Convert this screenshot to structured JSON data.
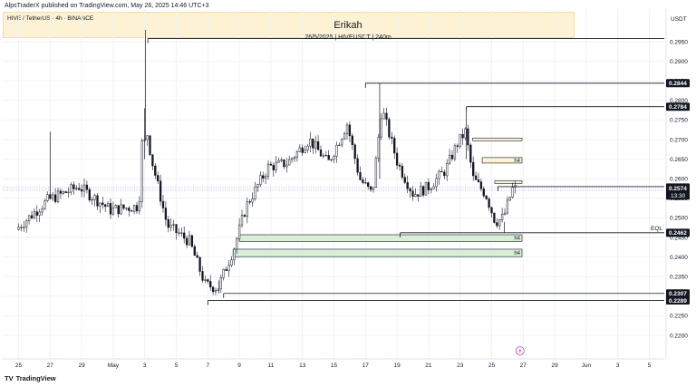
{
  "header": {
    "published": "AlpsTraderX published on TradingView.com, May 26, 2025 14:46 UTC+3",
    "symbol": "HIVE / TetherUS · 4h · BINANCE",
    "watermark_title": "Erikah",
    "watermark_sub": "26/5/2025 | HIVEUSDT | 240m",
    "currency": "USDT",
    "brand": "TradingView",
    "brand_mark": "TV"
  },
  "chart_data": {
    "type": "candlestick",
    "y_min": 0.2175,
    "y_max": 0.2975,
    "x_ticks": [
      {
        "label": "25",
        "slot": 0
      },
      {
        "label": "27",
        "slot": 1
      },
      {
        "label": "29",
        "slot": 2
      },
      {
        "label": "May",
        "slot": 3
      },
      {
        "label": "3",
        "slot": 4
      },
      {
        "label": "5",
        "slot": 5
      },
      {
        "label": "7",
        "slot": 6
      },
      {
        "label": "9",
        "slot": 7
      },
      {
        "label": "11",
        "slot": 8
      },
      {
        "label": "13",
        "slot": 9
      },
      {
        "label": "15",
        "slot": 10
      },
      {
        "label": "17",
        "slot": 11
      },
      {
        "label": "19",
        "slot": 12
      },
      {
        "label": "21",
        "slot": 13
      },
      {
        "label": "23",
        "slot": 14
      },
      {
        "label": "25",
        "slot": 15
      },
      {
        "label": "27",
        "slot": 16
      },
      {
        "label": "29",
        "slot": 17
      },
      {
        "label": "Jun",
        "slot": 18
      },
      {
        "label": "3",
        "slot": 19
      },
      {
        "label": "5",
        "slot": 20
      }
    ],
    "y_ticks": [
      "0.2950",
      "0.2900",
      "0.2850",
      "0.2800",
      "0.2750",
      "0.2700",
      "0.2650",
      "0.2600",
      "0.2550",
      "0.2500",
      "0.2450",
      "0.2400",
      "0.2350",
      "0.2300",
      "0.2250",
      "0.2200"
    ],
    "price_tags": [
      {
        "label": "0.2844",
        "value": 0.2844
      },
      {
        "label": "0.2784",
        "value": 0.2784
      },
      {
        "label": "0.2462",
        "value": 0.2462
      },
      {
        "label": "0.2307",
        "value": 0.2307
      },
      {
        "label": "0.2289",
        "value": 0.2289
      }
    ],
    "current_price": {
      "label": "0.2574",
      "countdown": "13:30",
      "value": 0.2574
    },
    "eql_label": "EQL",
    "zones": [
      {
        "label": "",
        "top": 0.2704,
        "bottom": 0.2697,
        "color": "#fdf3d4",
        "from_slot": 14.4
      },
      {
        "label": "h4",
        "top": 0.2654,
        "bottom": 0.264,
        "color": "#fdf3d4",
        "from_slot": 14.7
      },
      {
        "label": "",
        "top": 0.2595,
        "bottom": 0.2588,
        "color": "#fdf3d4",
        "from_slot": 15.1
      },
      {
        "label": "h4",
        "top": 0.2457,
        "bottom": 0.244,
        "color": "#d8efd5",
        "from_slot": 7.0
      },
      {
        "label": "h4",
        "top": 0.242,
        "bottom": 0.2401,
        "color": "#d8efd5",
        "from_slot": 6.8
      }
    ],
    "levels": [
      {
        "value": 0.2958,
        "from_slot": 4.1
      },
      {
        "value": 0.2844,
        "from_slot": 11.0
      },
      {
        "value": 0.2784,
        "from_slot": 14.2
      },
      {
        "value": 0.2462,
        "from_slot": 12.1
      },
      {
        "value": 0.258,
        "from_slot": 15.2
      },
      {
        "value": 0.2307,
        "from_slot": 6.5
      },
      {
        "value": 0.2289,
        "from_slot": 6.0
      }
    ],
    "anchors": [
      {
        "slot": 0,
        "price": 0.247
      },
      {
        "slot": 1,
        "price": 0.2545
      },
      {
        "slot": 2,
        "price": 0.258
      },
      {
        "slot": 3,
        "price": 0.252
      },
      {
        "slot": 3.9,
        "price": 0.253
      },
      {
        "slot": 4.05,
        "price": 0.277
      },
      {
        "slot": 4.3,
        "price": 0.265
      },
      {
        "slot": 4.8,
        "price": 0.248
      },
      {
        "slot": 5.5,
        "price": 0.244
      },
      {
        "slot": 6.0,
        "price": 0.233
      },
      {
        "slot": 6.4,
        "price": 0.232
      },
      {
        "slot": 6.9,
        "price": 0.242
      },
      {
        "slot": 7.3,
        "price": 0.253
      },
      {
        "slot": 8.0,
        "price": 0.263
      },
      {
        "slot": 8.6,
        "price": 0.264
      },
      {
        "slot": 9.3,
        "price": 0.27
      },
      {
        "slot": 9.9,
        "price": 0.264
      },
      {
        "slot": 10.5,
        "price": 0.274
      },
      {
        "slot": 10.9,
        "price": 0.26
      },
      {
        "slot": 11.3,
        "price": 0.256
      },
      {
        "slot": 11.6,
        "price": 0.278
      },
      {
        "slot": 12.1,
        "price": 0.264
      },
      {
        "slot": 12.6,
        "price": 0.256
      },
      {
        "slot": 13.1,
        "price": 0.258
      },
      {
        "slot": 13.6,
        "price": 0.262
      },
      {
        "slot": 14.0,
        "price": 0.269
      },
      {
        "slot": 14.25,
        "price": 0.272
      },
      {
        "slot": 14.5,
        "price": 0.26
      },
      {
        "slot": 14.9,
        "price": 0.256
      },
      {
        "slot": 15.2,
        "price": 0.249
      },
      {
        "slot": 15.45,
        "price": 0.25
      },
      {
        "slot": 15.75,
        "price": 0.2574
      }
    ],
    "event_icon": {
      "name": "lightning-icon",
      "slot": 15.9
    }
  }
}
